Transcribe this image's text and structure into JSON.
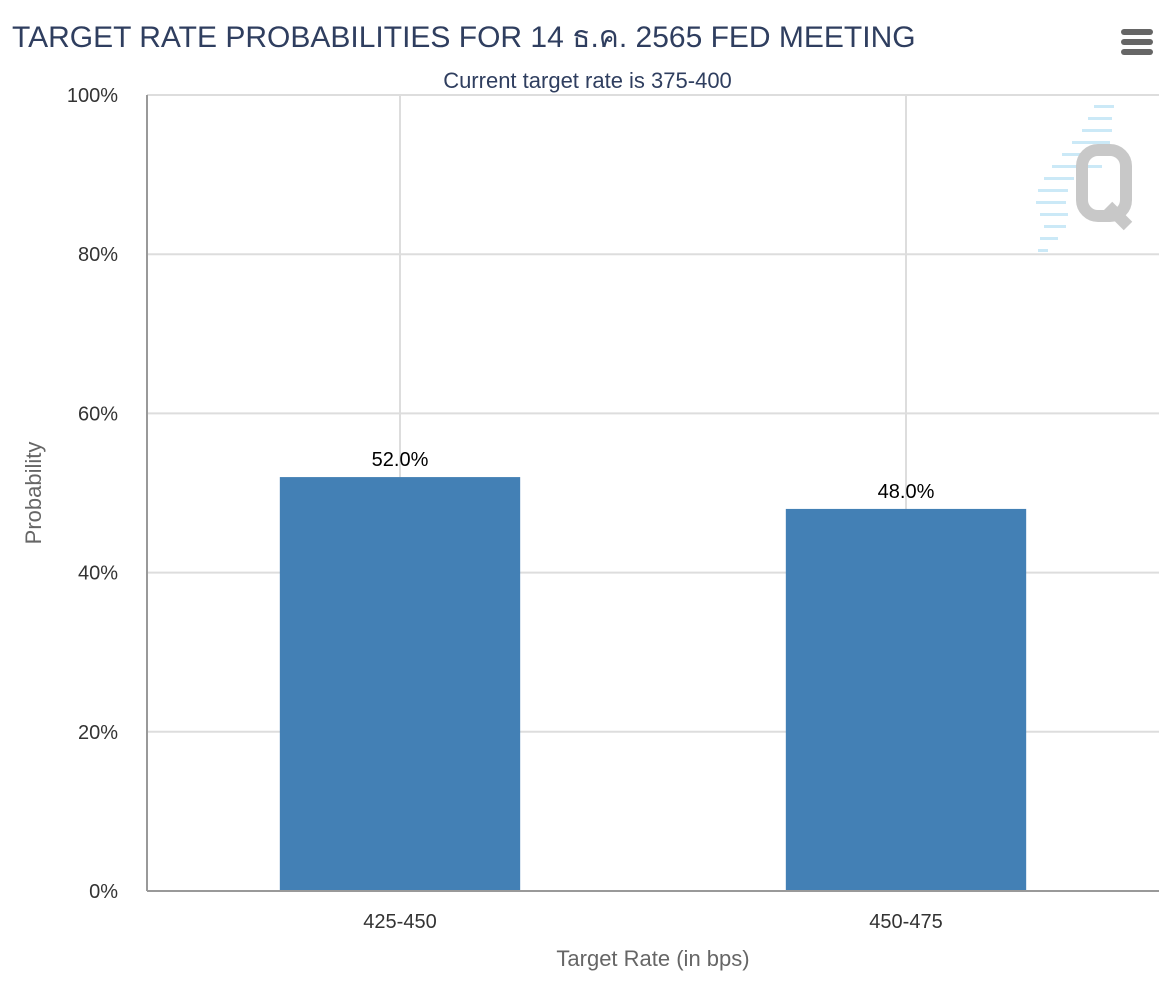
{
  "header": {
    "title": "TARGET RATE PROBABILITIES FOR 14 ธ.ค. 2565 FED MEETING",
    "subtitle": "Current target rate is 375-400"
  },
  "menu": {
    "icon": "hamburger-menu-icon"
  },
  "watermark": {
    "icon": "q-logo-icon",
    "color": "#c8c8c8"
  },
  "chart_data": {
    "type": "bar",
    "title": "TARGET RATE PROBABILITIES FOR 14 ธ.ค. 2565 FED MEETING",
    "subtitle": "Current target rate is 375-400",
    "categories": [
      "425-450",
      "450-475"
    ],
    "values": [
      52.0,
      48.0
    ],
    "data_labels": [
      "52.0%",
      "48.0%"
    ],
    "xlabel": "Target Rate (in bps)",
    "ylabel": "Probability",
    "ylim": [
      0,
      100
    ],
    "yticks": [
      0,
      20,
      40,
      60,
      80,
      100
    ],
    "ytick_labels": [
      "0%",
      "20%",
      "40%",
      "60%",
      "80%",
      "100%"
    ],
    "grid": true,
    "bar_color": "#4380b5"
  }
}
